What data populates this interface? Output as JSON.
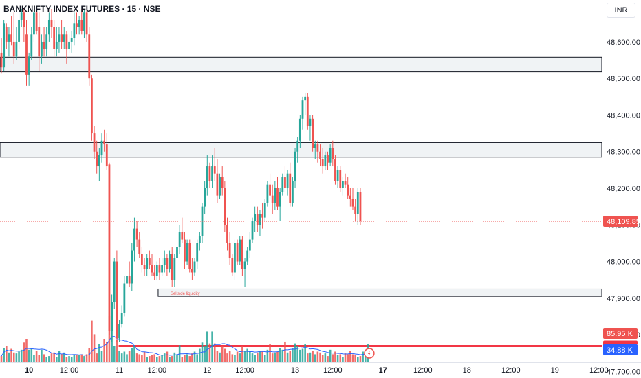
{
  "header": {
    "title": "BANKNIFTY INDEX FUTURES · 15 · NSE",
    "currency": "INR"
  },
  "colors": {
    "up": "#26a69a",
    "down": "#ef5350",
    "volume_ma": "#2962ff",
    "zone_line": "#131722",
    "zone_fill": "#f0f3f5",
    "red_level": "#f23645",
    "axis_text": "#131722"
  },
  "chart_data": {
    "type": "candlestick",
    "ylim": [
      47710,
      48690
    ],
    "x_range": [
      0,
      152
    ],
    "y_ticks": [
      "48,600.00",
      "48,500.00",
      "48,400.00",
      "48,300.00",
      "48,200.00",
      "48,100.00",
      "48,000.00",
      "47,900.00",
      "47,800.00"
    ],
    "y_tick_values": [
      48600,
      48500,
      48400,
      48300,
      48200,
      48100,
      48000,
      47900,
      47800
    ],
    "x_ticks": [
      {
        "i": 11,
        "label": "10",
        "bold": true
      },
      {
        "i": 27,
        "label": "12:00",
        "bold": false
      },
      {
        "i": 47,
        "label": "11",
        "bold": false
      },
      {
        "i": 62,
        "label": "12:00",
        "bold": false
      },
      {
        "i": 82,
        "label": "12",
        "bold": false
      },
      {
        "i": 97,
        "label": "12:00",
        "bold": false
      },
      {
        "i": 117,
        "label": "13",
        "bold": false
      },
      {
        "i": 132,
        "label": "12:00",
        "bold": false
      },
      {
        "i": 152,
        "label": "17",
        "bold": true
      }
    ],
    "future_x_ticks": [
      "12:00",
      "18",
      "12:00",
      "19",
      "12:00"
    ],
    "last_price": {
      "value": 48109.85,
      "label": "48,109.85"
    },
    "red_level": {
      "value": 47769.1,
      "label": "47,769.10",
      "from_index": 47
    },
    "partial_tick": "47,700.00",
    "zones": [
      {
        "top": 48558,
        "bottom": 48518,
        "from_index": 0
      },
      {
        "top": 48325,
        "bottom": 48285,
        "from_index": 0
      },
      {
        "top": 47925,
        "bottom": 47905,
        "from_index": 63,
        "label": "Sellside liquidity"
      }
    ],
    "volume": {
      "label": "85.95 K",
      "ma_label": "34.88 K"
    },
    "candles": [
      [
        48570,
        48610,
        48515,
        48530
      ],
      [
        48530,
        48660,
        48520,
        48650
      ],
      [
        48640,
        48650,
        48580,
        48600
      ],
      [
        48600,
        48640,
        48560,
        48620
      ],
      [
        48620,
        48670,
        48590,
        48600
      ],
      [
        48600,
        48680,
        48540,
        48560
      ],
      [
        48560,
        48640,
        48550,
        48600
      ],
      [
        48600,
        48690,
        48580,
        48660
      ],
      [
        48660,
        48690,
        48640,
        48680
      ],
      [
        48680,
        48690,
        48600,
        48640
      ],
      [
        48620,
        48660,
        48480,
        48510
      ],
      [
        48510,
        48570,
        48480,
        48560
      ],
      [
        48560,
        48640,
        48550,
        48620
      ],
      [
        48620,
        48690,
        48600,
        48680
      ],
      [
        48680,
        48690,
        48620,
        48630
      ],
      [
        48640,
        48680,
        48520,
        48560
      ],
      [
        48560,
        48620,
        48540,
        48600
      ],
      [
        48600,
        48640,
        48560,
        48580
      ],
      [
        48580,
        48640,
        48560,
        48620
      ],
      [
        48620,
        48680,
        48600,
        48660
      ],
      [
        48660,
        48690,
        48610,
        48640
      ],
      [
        48640,
        48660,
        48560,
        48580
      ],
      [
        48580,
        48640,
        48560,
        48600
      ],
      [
        48600,
        48640,
        48570,
        48620
      ],
      [
        48620,
        48660,
        48580,
        48600
      ],
      [
        48600,
        48640,
        48580,
        48620
      ],
      [
        48620,
        48630,
        48540,
        48580
      ],
      [
        48580,
        48620,
        48570,
        48600
      ],
      [
        48600,
        48630,
        48570,
        48610
      ],
      [
        48610,
        48680,
        48590,
        48650
      ],
      [
        48650,
        48680,
        48620,
        48640
      ],
      [
        48640,
        48670,
        48620,
        48660
      ],
      [
        48660,
        48690,
        48620,
        48630
      ],
      [
        48630,
        48690,
        48610,
        48680
      ],
      [
        48680,
        48690,
        48600,
        48620
      ],
      [
        48620,
        48640,
        48480,
        48500
      ],
      [
        48500,
        48510,
        48330,
        48350
      ],
      [
        48350,
        48370,
        48280,
        48300
      ],
      [
        48300,
        48330,
        48240,
        48260
      ],
      [
        48260,
        48310,
        48220,
        48290
      ],
      [
        48290,
        48350,
        48270,
        48330
      ],
      [
        48330,
        48360,
        48300,
        48320
      ],
      [
        48320,
        48350,
        48250,
        48260
      ],
      [
        48265,
        48270,
        47800,
        47810
      ],
      [
        47810,
        47910,
        47780,
        47890
      ],
      [
        47890,
        48010,
        47870,
        48000
      ],
      [
        48000,
        48030,
        47780,
        47790
      ],
      [
        47790,
        47840,
        47780,
        47830
      ],
      [
        47830,
        47880,
        47820,
        47860
      ],
      [
        47860,
        47960,
        47850,
        47940
      ],
      [
        47940,
        48010,
        47920,
        47960
      ],
      [
        47960,
        48000,
        47930,
        47940
      ],
      [
        47940,
        48050,
        47920,
        48030
      ],
      [
        48030,
        48120,
        48000,
        48090
      ],
      [
        48090,
        48110,
        48040,
        48060
      ],
      [
        48060,
        48080,
        48010,
        48020
      ],
      [
        48020,
        48040,
        47970,
        47990
      ],
      [
        47990,
        48010,
        47960,
        47980
      ],
      [
        47980,
        48020,
        47960,
        48010
      ],
      [
        48010,
        48030,
        47980,
        47990
      ],
      [
        47990,
        48020,
        47960,
        47970
      ],
      [
        47970,
        47990,
        47950,
        47960
      ],
      [
        47960,
        48000,
        47950,
        47990
      ],
      [
        47990,
        48010,
        47950,
        47970
      ],
      [
        47970,
        48010,
        47960,
        47990
      ],
      [
        47990,
        48030,
        47970,
        48010
      ],
      [
        48010,
        48020,
        47960,
        47980
      ],
      [
        47980,
        48030,
        47970,
        48020
      ],
      [
        48020,
        48040,
        47930,
        47950
      ],
      [
        47950,
        48020,
        47930,
        48010
      ],
      [
        48010,
        48060,
        47990,
        48040
      ],
      [
        48040,
        48100,
        48020,
        48080
      ],
      [
        48080,
        48120,
        48050,
        48060
      ],
      [
        48060,
        48080,
        47980,
        48000
      ],
      [
        48000,
        48060,
        47990,
        48050
      ],
      [
        48050,
        48060,
        47970,
        47980
      ],
      [
        47980,
        48010,
        47950,
        47970
      ],
      [
        47970,
        48010,
        47960,
        48000
      ],
      [
        48000,
        48060,
        47980,
        48050
      ],
      [
        48050,
        48080,
        48030,
        48070
      ],
      [
        48070,
        48160,
        48050,
        48150
      ],
      [
        48150,
        48220,
        48130,
        48200
      ],
      [
        48200,
        48290,
        48180,
        48260
      ],
      [
        48260,
        48270,
        48200,
        48220
      ],
      [
        48220,
        48290,
        48200,
        48260
      ],
      [
        48260,
        48310,
        48220,
        48240
      ],
      [
        48240,
        48280,
        48160,
        48180
      ],
      [
        48180,
        48240,
        48170,
        48230
      ],
      [
        48230,
        48260,
        48180,
        48200
      ],
      [
        48200,
        48220,
        48080,
        48100
      ],
      [
        48100,
        48120,
        48030,
        48050
      ],
      [
        48050,
        48080,
        47990,
        48010
      ],
      [
        48010,
        48020,
        47960,
        47970
      ],
      [
        47970,
        48060,
        47950,
        48050
      ],
      [
        48050,
        48060,
        47990,
        48000
      ],
      [
        48000,
        48070,
        47990,
        48060
      ],
      [
        48060,
        48070,
        47960,
        47980
      ],
      [
        47980,
        48010,
        47930,
        48000
      ],
      [
        48000,
        48040,
        47990,
        48030
      ],
      [
        48030,
        48080,
        48010,
        48060
      ],
      [
        48060,
        48120,
        48050,
        48110
      ],
      [
        48110,
        48150,
        48080,
        48130
      ],
      [
        48130,
        48150,
        48080,
        48100
      ],
      [
        48100,
        48140,
        48070,
        48130
      ],
      [
        48130,
        48160,
        48090,
        48120
      ],
      [
        48120,
        48170,
        48110,
        48160
      ],
      [
        48160,
        48220,
        48150,
        48210
      ],
      [
        48210,
        48240,
        48170,
        48180
      ],
      [
        48180,
        48210,
        48130,
        48160
      ],
      [
        48160,
        48220,
        48140,
        48200
      ],
      [
        48200,
        48230,
        48140,
        48150
      ],
      [
        48150,
        48200,
        48110,
        48190
      ],
      [
        48190,
        48240,
        48180,
        48230
      ],
      [
        48230,
        48260,
        48190,
        48200
      ],
      [
        48200,
        48250,
        48180,
        48240
      ],
      [
        48240,
        48270,
        48150,
        48160
      ],
      [
        48160,
        48230,
        48150,
        48220
      ],
      [
        48220,
        48310,
        48200,
        48300
      ],
      [
        48300,
        48340,
        48270,
        48330
      ],
      [
        48330,
        48400,
        48310,
        48390
      ],
      [
        48390,
        48450,
        48360,
        48440
      ],
      [
        48440,
        48460,
        48400,
        48450
      ],
      [
        48450,
        48460,
        48360,
        48370
      ],
      [
        48370,
        48400,
        48330,
        48390
      ],
      [
        48390,
        48400,
        48300,
        48310
      ],
      [
        48310,
        48330,
        48280,
        48320
      ],
      [
        48320,
        48330,
        48270,
        48300
      ],
      [
        48300,
        48320,
        48260,
        48280
      ],
      [
        48280,
        48310,
        48240,
        48260
      ],
      [
        48260,
        48300,
        48250,
        48290
      ],
      [
        48290,
        48300,
        48250,
        48270
      ],
      [
        48270,
        48320,
        48260,
        48310
      ],
      [
        48310,
        48330,
        48260,
        48280
      ],
      [
        48280,
        48290,
        48210,
        48220
      ],
      [
        48220,
        48260,
        48200,
        48250
      ],
      [
        48250,
        48260,
        48190,
        48200
      ],
      [
        48200,
        48230,
        48180,
        48220
      ],
      [
        48220,
        48240,
        48200,
        48210
      ],
      [
        48210,
        48230,
        48170,
        48180
      ],
      [
        48180,
        48200,
        48150,
        48170
      ],
      [
        48170,
        48200,
        48140,
        48150
      ],
      [
        48150,
        48170,
        48110,
        48130
      ],
      [
        48130,
        48200,
        48100,
        48190
      ],
      [
        48190,
        48200,
        48100,
        48110
      ]
    ],
    "volumes": [
      0.12,
      0.3,
      0.34,
      0.2,
      0.28,
      0.2,
      0.18,
      0.22,
      0.26,
      0.42,
      0.5,
      0.26,
      0.3,
      0.14,
      0.24,
      0.14,
      0.26,
      0.16,
      0.1,
      0.12,
      0.18,
      0.2,
      0.1,
      0.24,
      0.16,
      0.2,
      0.1,
      0.12,
      0.1,
      0.14,
      0.16,
      0.14,
      0.16,
      0.12,
      0.16,
      0.3,
      0.9,
      0.6,
      0.18,
      0.38,
      0.24,
      0.5,
      0.44,
      1.0,
      0.92,
      0.34,
      0.48,
      0.24,
      0.18,
      0.22,
      0.16,
      0.24,
      0.3,
      0.36,
      0.18,
      0.16,
      0.14,
      0.22,
      0.1,
      0.12,
      0.14,
      0.16,
      0.1,
      0.12,
      0.14,
      0.18,
      0.22,
      0.1,
      0.12,
      0.2,
      0.16,
      0.36,
      0.1,
      0.14,
      0.16,
      0.12,
      0.18,
      0.22,
      0.16,
      0.28,
      0.42,
      0.34,
      0.66,
      0.4,
      0.66,
      0.4,
      0.24,
      0.2,
      0.34,
      0.28,
      0.18,
      0.24,
      0.16,
      0.14,
      0.22,
      0.18,
      0.34,
      0.24,
      0.28,
      0.22,
      0.18,
      0.14,
      0.2,
      0.24,
      0.22,
      0.14,
      0.26,
      0.38,
      0.18,
      0.2,
      0.22,
      0.3,
      0.26,
      0.44,
      0.2,
      0.24,
      0.3,
      0.4,
      0.34,
      0.26,
      0.28,
      0.38,
      0.18,
      0.2,
      0.24,
      0.16,
      0.22,
      0.2,
      0.14,
      0.18,
      0.12,
      0.26,
      0.16,
      0.22,
      0.14,
      0.16,
      0.1,
      0.18,
      0.16,
      0.24,
      0.16,
      0.14,
      0.1,
      0.12,
      0.22,
      0.16,
      0.38
    ]
  }
}
